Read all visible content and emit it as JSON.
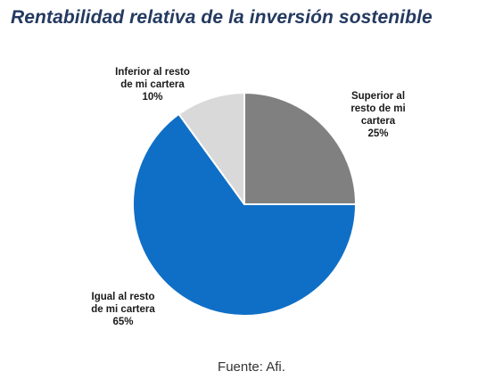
{
  "title": "Rentabilidad relativa de la inversión sostenible",
  "source": "Fuente: Afi.",
  "colors": {
    "title": "#243a60",
    "edge": "#ffffff"
  },
  "chart_data": {
    "type": "pie",
    "start_angle": "12 o'clock",
    "direction": "clockwise",
    "slices": [
      {
        "label_lines": [
          "Superior al",
          "resto de mi",
          "cartera"
        ],
        "value_label": "25%",
        "value": 25,
        "color": "#808080"
      },
      {
        "label_lines": [
          "Igual al resto",
          "de mi cartera"
        ],
        "value_label": "65%",
        "value": 65,
        "color": "#0f6fc6"
      },
      {
        "label_lines": [
          "Inferior al resto",
          "de mi cartera"
        ],
        "value_label": "10%",
        "value": 10,
        "color": "#d9d9d9"
      }
    ]
  }
}
